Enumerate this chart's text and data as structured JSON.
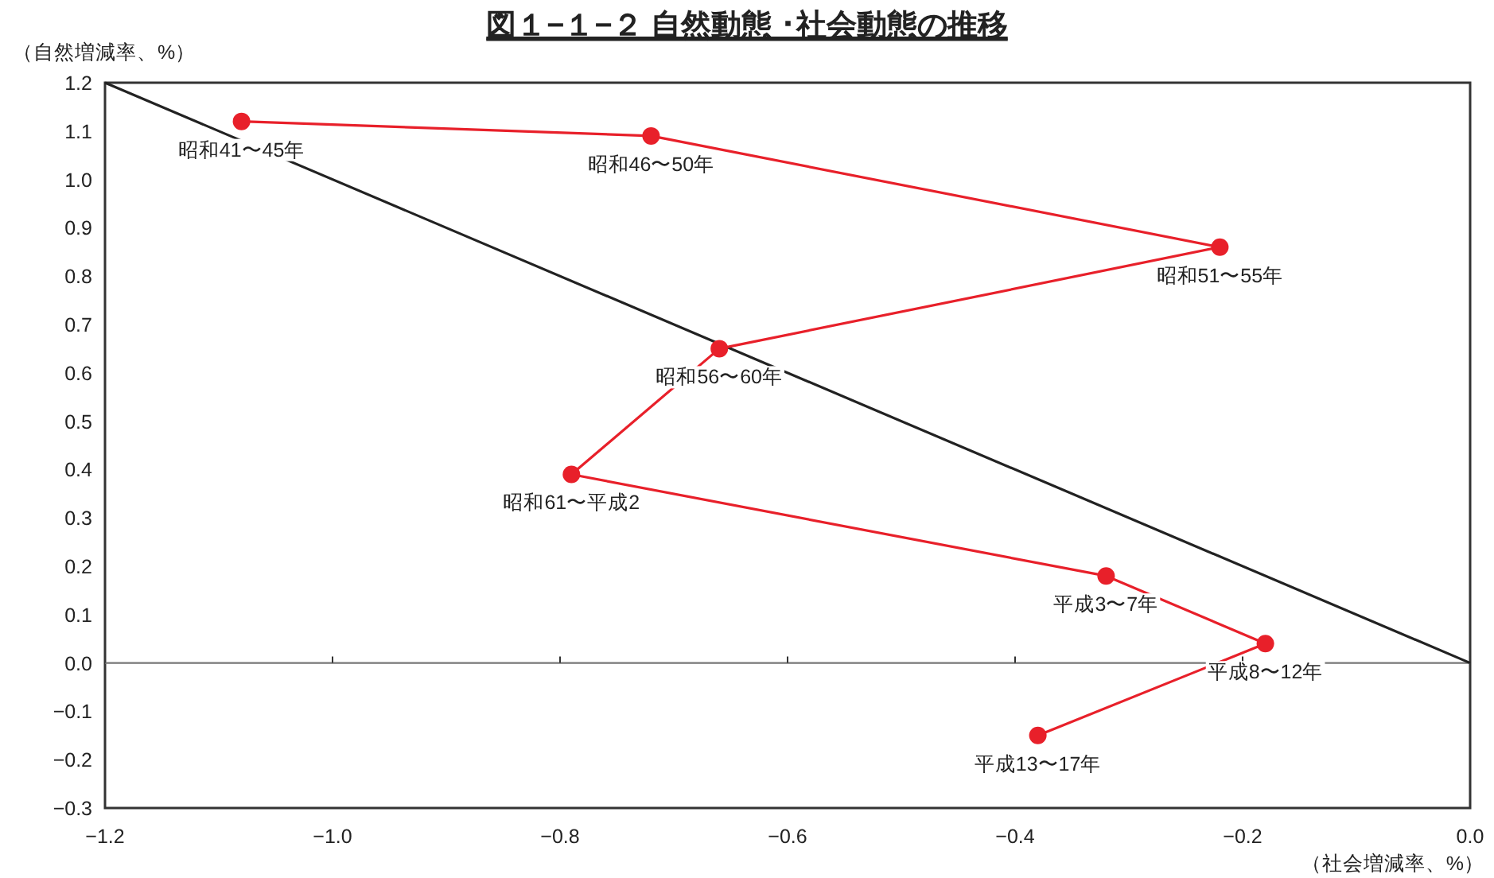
{
  "chart_data": {
    "type": "line",
    "title": "図１−１−２ 自然動態 ･社会動態の推移",
    "xlabel": "（社会増減率、%）",
    "ylabel": "（自然増減率、%）",
    "xlim": [
      -1.2,
      0.0
    ],
    "xticks": [
      -1.2,
      {
        "value": -1.0,
        "label": "−1.0"
      },
      -0.8,
      -0.6,
      -0.4,
      -0.2,
      {
        "value": 0.0,
        "label": "0.0"
      }
    ],
    "ylim": [
      -0.3,
      1.2
    ],
    "yticks": [
      -0.3,
      -0.2,
      -0.1,
      {
        "value": 0.0,
        "label": "0.0"
      },
      0.1,
      0.2,
      0.3,
      0.4,
      0.5,
      0.6,
      0.7,
      0.8,
      0.9,
      {
        "value": 1.0,
        "label": "1.0"
      },
      1.1,
      1.2
    ],
    "grid": false,
    "series": [
      {
        "color": "#222222",
        "marker": "none",
        "x": [
          -1.2,
          0.0
        ],
        "values": [
          1.2,
          0.0
        ]
      },
      {
        "color": "#e8202a",
        "marker": "circle",
        "x": [
          -1.08,
          -0.72,
          -0.22,
          -0.66,
          -0.79,
          -0.32,
          -0.18,
          -0.38
        ],
        "values": [
          1.12,
          1.09,
          0.86,
          0.65,
          0.39,
          0.18,
          0.04,
          -0.15
        ]
      }
    ],
    "ref_lines": [
      {
        "axis": "y",
        "value": 0.0,
        "color": "#777777"
      }
    ],
    "annotations": [
      {
        "text": "昭和41〜45年",
        "x": -1.08,
        "y": 1.12
      },
      {
        "text": "昭和46〜50年",
        "x": -0.72,
        "y": 1.09
      },
      {
        "text": "昭和51〜55年",
        "x": -0.22,
        "y": 0.86
      },
      {
        "text": "昭和56〜60年",
        "x": -0.66,
        "y": 0.65
      },
      {
        "text": "昭和61〜平成2",
        "x": -0.79,
        "y": 0.39
      },
      {
        "text": "平成3〜7年",
        "x": -0.32,
        "y": 0.18
      },
      {
        "text": "平成8〜12年",
        "x": -0.18,
        "y": 0.04
      },
      {
        "text": "平成13〜17年",
        "x": -0.38,
        "y": -0.15
      }
    ]
  }
}
